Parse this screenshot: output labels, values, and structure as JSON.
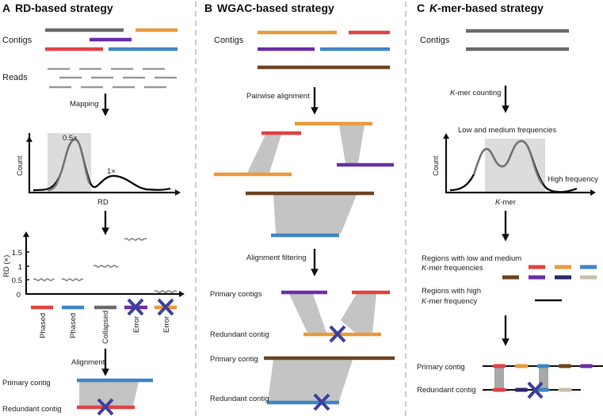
{
  "colors": {
    "red": "#e04343",
    "orange": "#e99b3b",
    "blue": "#3f86c6",
    "purple": "#6a2fa6",
    "gray": "#6b6b6b",
    "brown": "#6e4522",
    "navy": "#2b2a6b",
    "beige": "#c9c0aa",
    "cross": "#3d3f9e"
  },
  "panel_a": {
    "letter": "A",
    "title": "RD-based strategy",
    "contigs": "Contigs",
    "reads": "Reads",
    "mapping": "Mapping",
    "plot1": {
      "ylabel": "Count",
      "xlabel": "RD",
      "peak1": "0.5×",
      "peak2": "1×"
    },
    "plot2": {
      "ylabel": "RD (×)",
      "ticks": [
        "0",
        "0.5",
        "1",
        "1.5"
      ],
      "categories": [
        "Phased",
        "Phased",
        "Collapsed",
        "Error",
        "Error"
      ]
    },
    "alignment": "Alignment",
    "primary": "Primary contig",
    "redundant": "Redundant contig"
  },
  "panel_b": {
    "letter": "B",
    "title": "WGAC-based strategy",
    "contigs": "Contigs",
    "pairwise": "Pairwise alignment",
    "filtering": "Alignment filtering",
    "primary_contigs": "Primary contigs",
    "redundant1": "Redundant contig",
    "primary": "Primary contig",
    "redundant2": "Redundant contig"
  },
  "panel_c": {
    "letter": "C",
    "title_italic": "K",
    "title_rest": "-mer-based strategy",
    "contigs": "Contigs",
    "counting_italic": "K",
    "counting_rest": "-mer counting",
    "plot": {
      "ylabel": "Count",
      "xlabel_italic": "K",
      "xlabel_rest": "-mer",
      "shade_label": "Low and medium frequencies",
      "high_label": "High frequency"
    },
    "low_line1": "Regions with low and medium",
    "low_line2_italic": "K",
    "low_line2_rest": "-mer frequencies",
    "high_line1": "Regions with high",
    "high_line2_italic": "K",
    "high_line2_rest": "-mer frequency",
    "primary": "Primary contig",
    "redundant": "Redundant contig"
  }
}
